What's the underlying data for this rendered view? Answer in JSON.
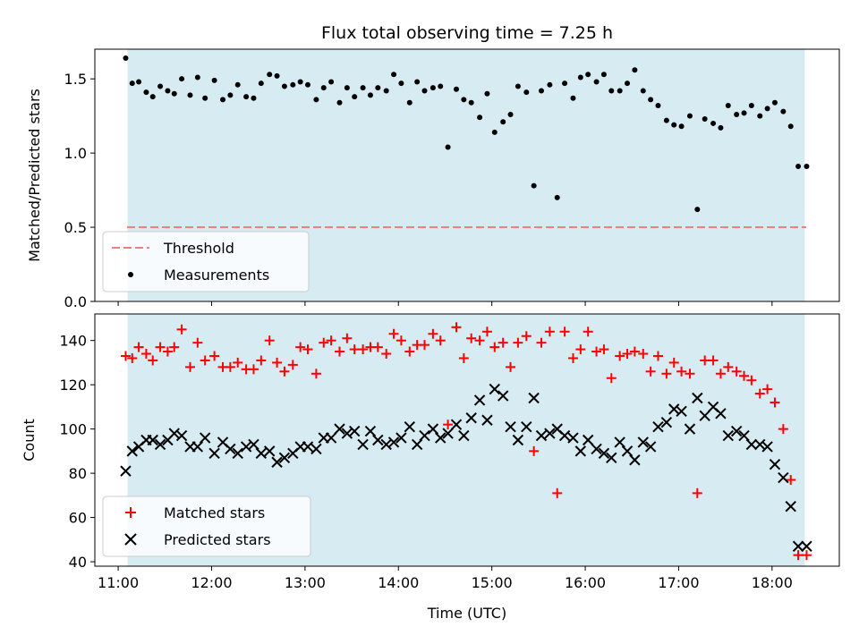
{
  "chart_data": [
    {
      "type": "scatter",
      "title": "Flux total observing time = 7.25 h",
      "xlabel": "",
      "ylabel": "Matched/Predicted stars",
      "ylim": [
        0,
        1.7
      ],
      "yticks": [
        "0.0",
        "0.5",
        "1.0",
        "1.5"
      ],
      "ytick_values": [
        0,
        0.5,
        1.0,
        1.5
      ],
      "shaded_span_hours": [
        11.1,
        18.35
      ],
      "threshold": {
        "name": "Threshold",
        "value": 0.5,
        "color": "#f08080"
      },
      "legend_position": "lower-left",
      "series": [
        {
          "name": "Measurements",
          "color": "#000000",
          "marker": "dot",
          "x": [
            11.08,
            11.15,
            11.22,
            11.3,
            11.37,
            11.45,
            11.53,
            11.6,
            11.68,
            11.77,
            11.85,
            11.93,
            12.03,
            12.12,
            12.2,
            12.28,
            12.37,
            12.45,
            12.53,
            12.62,
            12.7,
            12.78,
            12.87,
            12.95,
            13.03,
            13.12,
            13.2,
            13.28,
            13.37,
            13.45,
            13.53,
            13.62,
            13.7,
            13.78,
            13.87,
            13.95,
            14.03,
            14.12,
            14.2,
            14.28,
            14.37,
            14.45,
            14.53,
            14.62,
            14.7,
            14.78,
            14.87,
            14.95,
            15.03,
            15.12,
            15.2,
            15.28,
            15.37,
            15.45,
            15.53,
            15.62,
            15.7,
            15.78,
            15.87,
            15.95,
            16.03,
            16.12,
            16.2,
            16.28,
            16.37,
            16.45,
            16.53,
            16.62,
            16.7,
            16.78,
            16.87,
            16.95,
            17.03,
            17.12,
            17.2,
            17.28,
            17.37,
            17.45,
            17.53,
            17.62,
            17.7,
            17.78,
            17.87,
            17.95,
            18.03,
            18.12,
            18.2,
            18.28,
            18.37
          ],
          "y": [
            1.64,
            1.47,
            1.48,
            1.41,
            1.38,
            1.45,
            1.42,
            1.4,
            1.5,
            1.39,
            1.51,
            1.37,
            1.49,
            1.36,
            1.39,
            1.46,
            1.38,
            1.37,
            1.47,
            1.53,
            1.52,
            1.45,
            1.46,
            1.48,
            1.46,
            1.36,
            1.44,
            1.48,
            1.34,
            1.44,
            1.38,
            1.44,
            1.39,
            1.44,
            1.42,
            1.53,
            1.47,
            1.34,
            1.48,
            1.42,
            1.44,
            1.45,
            1.04,
            1.43,
            1.36,
            1.34,
            1.24,
            1.4,
            1.14,
            1.21,
            1.26,
            1.45,
            1.41,
            0.78,
            1.42,
            1.46,
            0.7,
            1.47,
            1.37,
            1.51,
            1.53,
            1.48,
            1.53,
            1.42,
            1.42,
            1.47,
            1.56,
            1.42,
            1.36,
            1.32,
            1.22,
            1.19,
            1.18,
            1.25,
            0.62,
            1.23,
            1.2,
            1.17,
            1.32,
            1.26,
            1.27,
            1.32,
            1.25,
            1.3,
            1.34,
            1.28,
            1.18,
            0.91,
            0.91
          ]
        }
      ]
    },
    {
      "type": "scatter",
      "title": "",
      "xlabel": "Time (UTC)",
      "ylabel": "Count",
      "ylim": [
        38,
        152
      ],
      "yticks": [
        "40",
        "60",
        "80",
        "100",
        "120",
        "140"
      ],
      "ytick_values": [
        40,
        60,
        80,
        100,
        120,
        140
      ],
      "xlim": [
        10.75,
        18.72
      ],
      "xticks": [
        "11:00",
        "12:00",
        "13:00",
        "14:00",
        "15:00",
        "16:00",
        "17:00",
        "18:00"
      ],
      "xtick_values": [
        11,
        12,
        13,
        14,
        15,
        16,
        17,
        18
      ],
      "shaded_span_hours": [
        11.1,
        18.35
      ],
      "legend_position": "lower-left",
      "series": [
        {
          "name": "Matched stars",
          "color": "#ff0000",
          "marker": "plus",
          "x": [
            11.08,
            11.15,
            11.22,
            11.3,
            11.37,
            11.45,
            11.53,
            11.6,
            11.68,
            11.77,
            11.85,
            11.93,
            12.03,
            12.12,
            12.2,
            12.28,
            12.37,
            12.45,
            12.53,
            12.62,
            12.7,
            12.78,
            12.87,
            12.95,
            13.03,
            13.12,
            13.2,
            13.28,
            13.37,
            13.45,
            13.53,
            13.62,
            13.7,
            13.78,
            13.87,
            13.95,
            14.03,
            14.12,
            14.2,
            14.28,
            14.37,
            14.45,
            14.53,
            14.62,
            14.7,
            14.78,
            14.87,
            14.95,
            15.03,
            15.12,
            15.2,
            15.28,
            15.37,
            15.45,
            15.53,
            15.62,
            15.7,
            15.78,
            15.87,
            15.95,
            16.03,
            16.12,
            16.2,
            16.28,
            16.37,
            16.45,
            16.53,
            16.62,
            16.7,
            16.78,
            16.87,
            16.95,
            17.03,
            17.12,
            17.2,
            17.28,
            17.37,
            17.45,
            17.53,
            17.62,
            17.7,
            17.78,
            17.87,
            17.95,
            18.03,
            18.12,
            18.2,
            18.28,
            18.37
          ],
          "y": [
            133,
            132,
            137,
            134,
            131,
            137,
            135,
            137,
            145,
            128,
            139,
            131,
            133,
            128,
            128,
            130,
            127,
            127,
            131,
            140,
            130,
            126,
            129,
            137,
            136,
            125,
            139,
            140,
            135,
            141,
            136,
            136,
            137,
            137,
            134,
            143,
            140,
            135,
            138,
            138,
            143,
            140,
            102,
            146,
            132,
            141,
            140,
            144,
            137,
            139,
            128,
            139,
            142,
            90,
            139,
            144,
            71,
            144,
            132,
            136,
            144,
            135,
            136,
            123,
            133,
            134,
            135,
            134,
            126,
            133,
            125,
            130,
            126,
            125,
            71,
            131,
            131,
            125,
            128,
            126,
            124,
            122,
            116,
            118,
            112,
            100,
            77,
            43,
            43
          ]
        },
        {
          "name": "Predicted stars",
          "color": "#000000",
          "marker": "x",
          "x": [
            11.08,
            11.15,
            11.22,
            11.3,
            11.37,
            11.45,
            11.53,
            11.6,
            11.68,
            11.77,
            11.85,
            11.93,
            12.03,
            12.12,
            12.2,
            12.28,
            12.37,
            12.45,
            12.53,
            12.62,
            12.7,
            12.78,
            12.87,
            12.95,
            13.03,
            13.12,
            13.2,
            13.28,
            13.37,
            13.45,
            13.53,
            13.62,
            13.7,
            13.78,
            13.87,
            13.95,
            14.03,
            14.12,
            14.2,
            14.28,
            14.37,
            14.45,
            14.53,
            14.62,
            14.7,
            14.78,
            14.87,
            14.95,
            15.03,
            15.12,
            15.2,
            15.28,
            15.37,
            15.45,
            15.53,
            15.62,
            15.7,
            15.78,
            15.87,
            15.95,
            16.03,
            16.12,
            16.2,
            16.28,
            16.37,
            16.45,
            16.53,
            16.62,
            16.7,
            16.78,
            16.87,
            16.95,
            17.03,
            17.12,
            17.2,
            17.28,
            17.37,
            17.45,
            17.53,
            17.62,
            17.7,
            17.78,
            17.87,
            17.95,
            18.03,
            18.12,
            18.2,
            18.28,
            18.37
          ],
          "y": [
            81,
            90,
            92,
            95,
            95,
            93,
            95,
            98,
            97,
            92,
            92,
            96,
            89,
            94,
            91,
            89,
            92,
            93,
            89,
            90,
            85,
            87,
            89,
            92,
            92,
            91,
            96,
            96,
            100,
            98,
            99,
            93,
            99,
            95,
            93,
            94,
            96,
            101,
            93,
            97,
            100,
            96,
            98,
            102,
            97,
            105,
            113,
            104,
            118,
            115,
            101,
            95,
            101,
            114,
            97,
            98,
            100,
            97,
            96,
            90,
            95,
            91,
            89,
            87,
            94,
            90,
            86,
            94,
            92,
            101,
            103,
            109,
            108,
            100,
            114,
            106,
            110,
            107,
            97,
            99,
            97,
            93,
            93,
            92,
            84,
            78,
            65,
            47,
            47
          ]
        }
      ]
    }
  ]
}
